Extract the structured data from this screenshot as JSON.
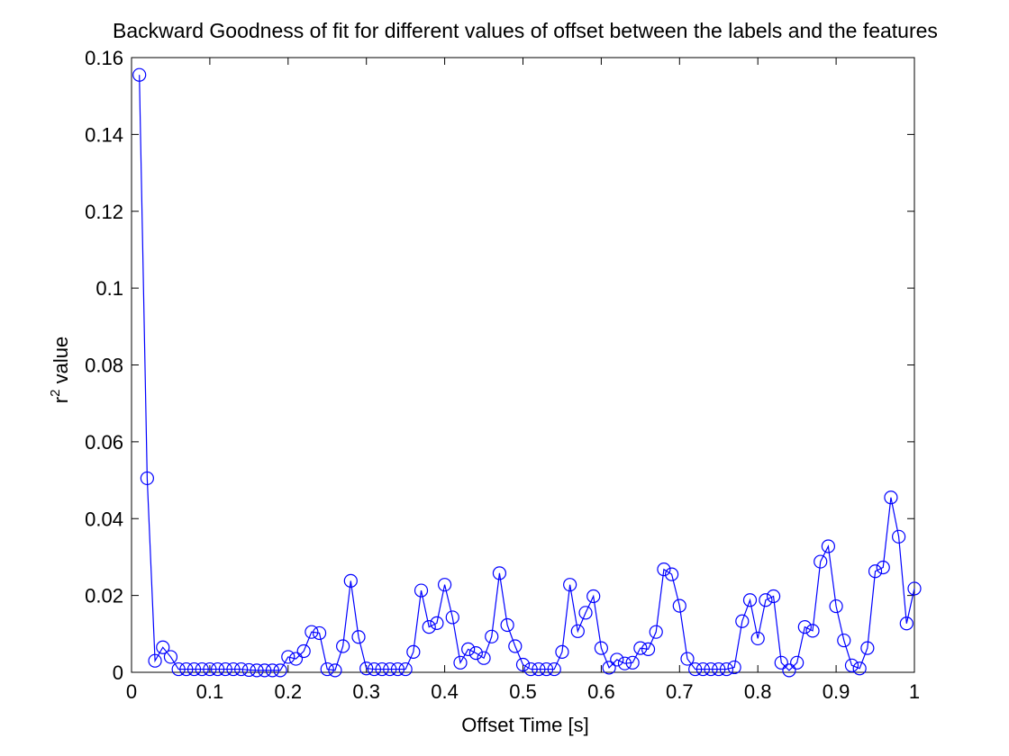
{
  "chart_data": {
    "type": "line",
    "title": "Backward Goodness of fit for different values of offset between the labels and the features",
    "xlabel": "Offset Time [s]",
    "ylabel": "r",
    "ylabel_sup": "2",
    "ylabel_suffix": " value",
    "xlim": [
      0,
      1
    ],
    "ylim": [
      0,
      0.16
    ],
    "xticks": [
      0,
      0.1,
      0.2,
      0.3,
      0.4,
      0.5,
      0.6,
      0.7,
      0.8,
      0.9,
      1
    ],
    "xtick_labels": [
      "0",
      "0.1",
      "0.2",
      "0.3",
      "0.4",
      "0.5",
      "0.6",
      "0.7",
      "0.8",
      "0.9",
      "1"
    ],
    "yticks": [
      0,
      0.02,
      0.04,
      0.06,
      0.08,
      0.1,
      0.12,
      0.14,
      0.16
    ],
    "ytick_labels": [
      "0",
      "0.02",
      "0.04",
      "0.06",
      "0.08",
      "0.1",
      "0.12",
      "0.14",
      "0.16"
    ],
    "grid": false,
    "marker": "circle",
    "line_color": "#0000ff",
    "series": [
      {
        "x": [
          0.01,
          0.02,
          0.03,
          0.04,
          0.05,
          0.06,
          0.07,
          0.08,
          0.09,
          0.1,
          0.11,
          0.12,
          0.13,
          0.14,
          0.15,
          0.16,
          0.17,
          0.18,
          0.19,
          0.2,
          0.21,
          0.22,
          0.23,
          0.24,
          0.25,
          0.26,
          0.27,
          0.28,
          0.29,
          0.3,
          0.31,
          0.32,
          0.33,
          0.34,
          0.35,
          0.36,
          0.37,
          0.38,
          0.39,
          0.4,
          0.41,
          0.42,
          0.43,
          0.44,
          0.45,
          0.46,
          0.47,
          0.48,
          0.49,
          0.5,
          0.51,
          0.52,
          0.53,
          0.54,
          0.55,
          0.56,
          0.57,
          0.58,
          0.59,
          0.6,
          0.61,
          0.62,
          0.63,
          0.64,
          0.65,
          0.66,
          0.67,
          0.68,
          0.69,
          0.7,
          0.71,
          0.72,
          0.73,
          0.74,
          0.75,
          0.76,
          0.77,
          0.78,
          0.79,
          0.8,
          0.81,
          0.82,
          0.83,
          0.84,
          0.85,
          0.86,
          0.87,
          0.88,
          0.89,
          0.9,
          0.91,
          0.92,
          0.93,
          0.94,
          0.95,
          0.96,
          0.97,
          0.98,
          0.99,
          1.0
        ],
        "y": [
          0.1555,
          0.0505,
          0.003,
          0.0065,
          0.004,
          0.0008,
          0.0008,
          0.0008,
          0.0008,
          0.0008,
          0.0008,
          0.0008,
          0.0008,
          0.0008,
          0.0006,
          0.0005,
          0.0005,
          0.0005,
          0.0005,
          0.004,
          0.0035,
          0.0055,
          0.0105,
          0.0102,
          0.0008,
          0.0005,
          0.0068,
          0.0238,
          0.0092,
          0.001,
          0.0008,
          0.0008,
          0.0008,
          0.0008,
          0.0008,
          0.0053,
          0.0213,
          0.0118,
          0.0128,
          0.0228,
          0.0143,
          0.0025,
          0.006,
          0.005,
          0.0037,
          0.0093,
          0.0258,
          0.0123,
          0.0068,
          0.002,
          0.0008,
          0.0008,
          0.0008,
          0.0008,
          0.0053,
          0.0228,
          0.0107,
          0.0155,
          0.0198,
          0.0063,
          0.0012,
          0.0033,
          0.0023,
          0.0025,
          0.0063,
          0.006,
          0.0105,
          0.0268,
          0.0255,
          0.0173,
          0.0035,
          0.0008,
          0.0008,
          0.0008,
          0.0008,
          0.0008,
          0.0013,
          0.0133,
          0.0188,
          0.0088,
          0.0188,
          0.0198,
          0.0025,
          0.0005,
          0.0025,
          0.0118,
          0.0108,
          0.0288,
          0.0328,
          0.0172,
          0.0083,
          0.0018,
          0.001,
          0.0063,
          0.0263,
          0.0273,
          0.0455,
          0.0353,
          0.0127,
          0.0218
        ]
      }
    ]
  }
}
